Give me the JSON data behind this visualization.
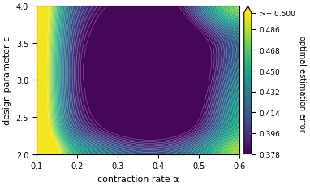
{
  "alpha_min": 0.1,
  "alpha_max": 0.6,
  "eps_min": 2.0,
  "eps_max": 4.0,
  "vmin": 0.378,
  "vmax": 0.5,
  "colorbar_ticks": [
    0.378,
    0.396,
    0.414,
    0.432,
    0.45,
    0.468,
    0.486,
    0.5
  ],
  "colorbar_ticklabels": [
    "0.378",
    "0.396",
    "0.414",
    "0.432",
    "0.450",
    "0.468",
    "0.486",
    ">= 0.500"
  ],
  "xlabel": "contraction rate α",
  "ylabel": "design parameter ε",
  "cbar_label": "optimal estimation error",
  "contour_levels": 30,
  "cmap": "viridis"
}
